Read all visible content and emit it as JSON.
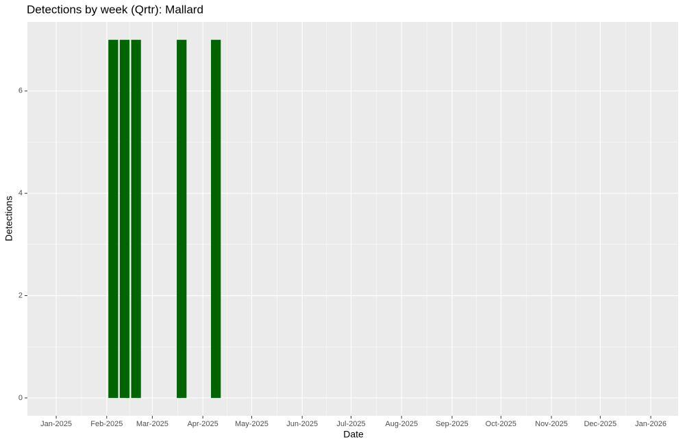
{
  "chart_data": {
    "type": "bar",
    "title": "Detections by week (Qrtr): Mallard",
    "x_label": "Date",
    "y_label": "Detections",
    "x": [
      35,
      42,
      49,
      77,
      98
    ],
    "values": [
      7,
      7,
      7,
      7,
      7
    ],
    "color": "#006400",
    "xlim": [
      -17.7,
      381.8
    ],
    "xticks": [
      {
        "value": 0,
        "label": "Jan-2025"
      },
      {
        "value": 31,
        "label": "Feb-2025"
      },
      {
        "value": 59,
        "label": "Mar-2025"
      },
      {
        "value": 90,
        "label": "Apr-2025"
      },
      {
        "value": 120,
        "label": "May-2025"
      },
      {
        "value": 151,
        "label": "Jun-2025"
      },
      {
        "value": 181,
        "label": "Jul-2025"
      },
      {
        "value": 212,
        "label": "Aug-2025"
      },
      {
        "value": 243,
        "label": "Sep-2025"
      },
      {
        "value": 273,
        "label": "Oct-2025"
      },
      {
        "value": 304,
        "label": "Nov-2025"
      },
      {
        "value": 334,
        "label": "Dec-2025"
      },
      {
        "value": 365,
        "label": "Jan-2026"
      }
    ],
    "ylim": [
      -0.35,
      7.35
    ],
    "yticks": [
      0,
      2,
      4,
      6
    ],
    "grid": true
  }
}
